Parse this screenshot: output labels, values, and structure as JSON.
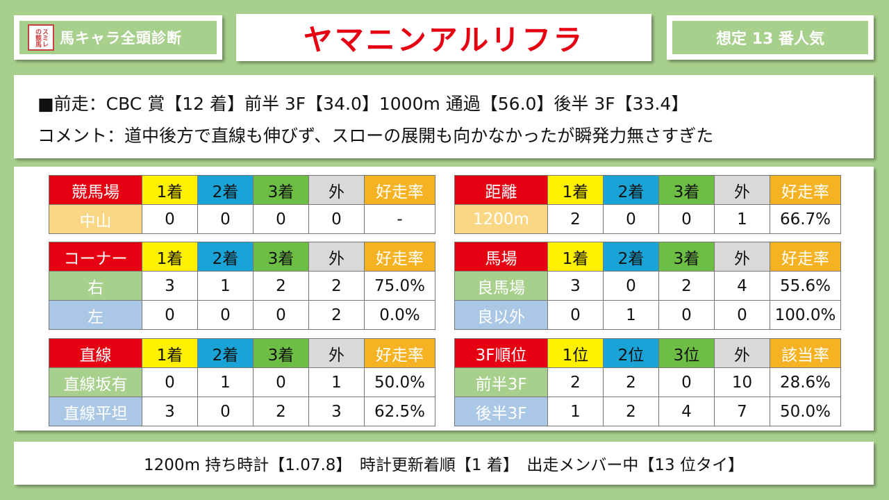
{
  "header": {
    "logo_text": "スミレの競馬",
    "badge": "馬キャラ全頭診断",
    "horse_name": "ヤマニンアルリフラ",
    "popularity": "想定 13 番人気"
  },
  "info": {
    "line1": "■前走：CBC 賞【12 着】前半 3F【34.0】1000m 通過【56.0】後半 3F【33.4】",
    "line2": "コメント：道中後方で直線も伸びず、スローの展開も向かなかったが瞬発力無さすぎた"
  },
  "tables": {
    "course": {
      "headers": [
        "競馬場",
        "1着",
        "2着",
        "3着",
        "外",
        "好走率"
      ],
      "rows": [
        [
          "中山",
          "0",
          "0",
          "0",
          "0",
          "-"
        ]
      ]
    },
    "distance": {
      "headers": [
        "距離",
        "1着",
        "2着",
        "3着",
        "外",
        "好走率"
      ],
      "rows": [
        [
          "1200m",
          "2",
          "0",
          "0",
          "1",
          "66.7%"
        ]
      ]
    },
    "corner": {
      "headers": [
        "コーナー",
        "1着",
        "2着",
        "3着",
        "外",
        "好走率"
      ],
      "rows": [
        [
          "右",
          "3",
          "1",
          "2",
          "2",
          "75.0%"
        ],
        [
          "左",
          "0",
          "0",
          "0",
          "2",
          "0.0%"
        ]
      ]
    },
    "track": {
      "headers": [
        "馬場",
        "1着",
        "2着",
        "3着",
        "外",
        "好走率"
      ],
      "rows": [
        [
          "良馬場",
          "3",
          "0",
          "2",
          "4",
          "55.6%"
        ],
        [
          "良以外",
          "0",
          "1",
          "0",
          "0",
          "100.0%"
        ]
      ]
    },
    "straight": {
      "headers": [
        "直線",
        "1着",
        "2着",
        "3着",
        "外",
        "好走率"
      ],
      "rows": [
        [
          "直線坂有",
          "0",
          "1",
          "0",
          "1",
          "50.0%"
        ],
        [
          "直線平坦",
          "3",
          "0",
          "2",
          "3",
          "62.5%"
        ]
      ]
    },
    "rank3f": {
      "headers": [
        "3F順位",
        "1位",
        "2位",
        "3位",
        "外",
        "該当率"
      ],
      "rows": [
        [
          "前半3F",
          "2",
          "2",
          "0",
          "10",
          "28.6%"
        ],
        [
          "後半3F",
          "1",
          "2",
          "4",
          "7",
          "50.0%"
        ]
      ]
    }
  },
  "footer": {
    "text": "1200m 持ち時計【1.07.8】　時計更新着順【1 着】　出走メンバー中【13 位タイ】"
  },
  "colors": {
    "background": "#a8d08d",
    "title_red": "#e60012",
    "header_red": "#e60012",
    "first_yellow": "#fff100",
    "second_blue": "#1aa3d6",
    "third_green": "#6dbe45",
    "out_gray": "#d9d9d9",
    "rate_orange": "#f5b323"
  }
}
